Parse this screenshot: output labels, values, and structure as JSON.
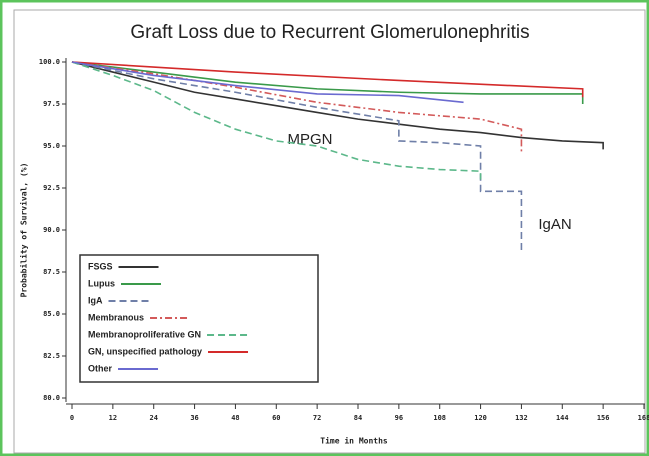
{
  "chart_data": {
    "type": "line",
    "title": "Graft Loss due to Recurrent Glomerulonephritis",
    "xlabel": "Time in Months",
    "ylabel": "Probability of Survival, (%)",
    "annotations": [
      "MPGN",
      "IgAN"
    ],
    "xlim": [
      0,
      168
    ],
    "ylim": [
      80,
      100
    ],
    "xticks": [
      0,
      12,
      24,
      36,
      48,
      60,
      72,
      84,
      96,
      108,
      120,
      132,
      144,
      156,
      168
    ],
    "yticks": [
      {
        "value": 80,
        "label": "80.0"
      },
      82.5,
      {
        "value": 85,
        "label": "85.0"
      },
      87.5,
      {
        "value": 90,
        "label": "90.0"
      },
      92.5,
      {
        "value": 95,
        "label": "95.0"
      },
      97.5,
      {
        "value": 100,
        "label": "100.0"
      }
    ],
    "legend": "lower left",
    "series": [
      {
        "name": "FSGS",
        "color": "#333333",
        "dash": "solid",
        "x": [
          0,
          12,
          24,
          36,
          48,
          60,
          72,
          84,
          96,
          108,
          120,
          132,
          144,
          156,
          156
        ],
        "values": [
          100,
          99.4,
          98.8,
          98.2,
          97.8,
          97.4,
          97,
          96.6,
          96.3,
          96,
          95.8,
          95.5,
          95.3,
          95.2,
          94.8
        ]
      },
      {
        "name": "Lupus",
        "color": "#3a9a4a",
        "dash": "solid",
        "x": [
          0,
          24,
          48,
          72,
          96,
          120,
          150,
          150
        ],
        "values": [
          100,
          99.4,
          98.8,
          98.4,
          98.2,
          98.1,
          98.1,
          97.5
        ]
      },
      {
        "name": "IgA",
        "color": "#6f7fa8",
        "dash": "dashed",
        "x": [
          0,
          24,
          48,
          72,
          96,
          96,
          108,
          120,
          120,
          132,
          132
        ],
        "values": [
          100,
          99,
          98.2,
          97.3,
          96.5,
          95.3,
          95.2,
          95,
          92.3,
          92.3,
          88.6
        ]
      },
      {
        "name": "Membranous",
        "color": "#d35a5a",
        "dash": "dashdot",
        "x": [
          0,
          24,
          48,
          72,
          96,
          120,
          132,
          132
        ],
        "values": [
          100,
          99.3,
          98.5,
          97.6,
          97,
          96.6,
          96,
          94.6
        ]
      },
      {
        "name": "Membranoproliferative GN",
        "color": "#5cb88a",
        "dash": "dashed",
        "x": [
          0,
          12,
          24,
          36,
          48,
          60,
          72,
          84,
          96,
          108,
          120,
          120
        ],
        "values": [
          100,
          99.2,
          98.3,
          97,
          96,
          95.3,
          95,
          94.2,
          93.8,
          93.6,
          93.5,
          93
        ]
      },
      {
        "name": "GN, unspecified pathology",
        "color": "#d42a2a",
        "dash": "solid",
        "x": [
          0,
          48,
          96,
          150,
          150
        ],
        "values": [
          100,
          99.4,
          98.9,
          98.4,
          97.9
        ]
      },
      {
        "name": "Other",
        "color": "#6a6ad0",
        "dash": "solid",
        "x": [
          0,
          24,
          48,
          72,
          96,
          115
        ],
        "values": [
          100,
          99.2,
          98.6,
          98.1,
          98,
          97.6
        ]
      }
    ]
  }
}
